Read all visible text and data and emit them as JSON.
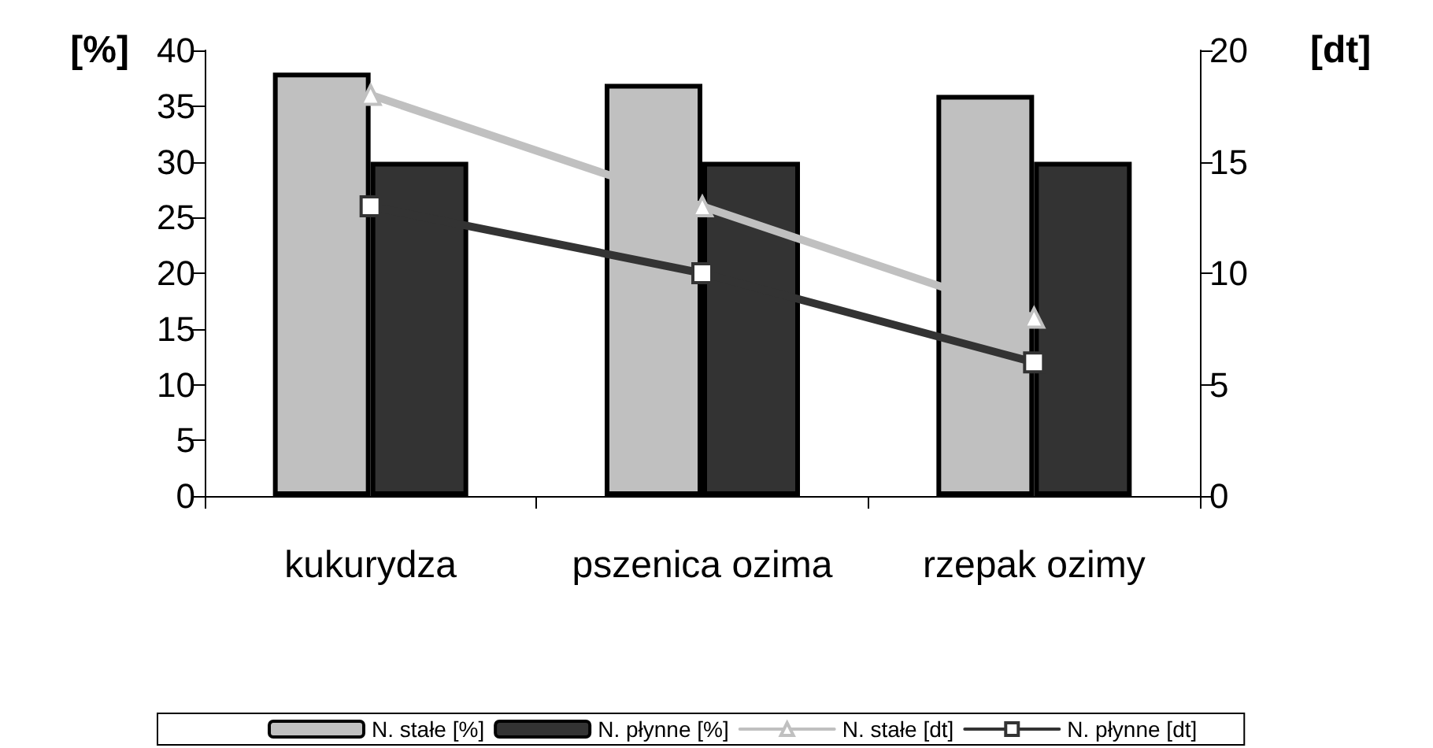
{
  "chart_data": {
    "type": "bar",
    "categories": [
      "kukurydza",
      "pszenica ozima",
      "rzepak ozimy"
    ],
    "series": [
      {
        "name": "N. stałe [%]",
        "color": "#c0c0c0",
        "values": [
          38,
          37,
          36
        ]
      },
      {
        "name": "N. płynne [%]",
        "color": "#333333",
        "values": [
          30,
          30,
          30
        ]
      },
      {
        "name": "N. stałe [dt]",
        "type": "line",
        "axis": "y2",
        "marker": "triangle",
        "color": "#c0c0c0",
        "values": [
          18,
          13,
          8
        ]
      },
      {
        "name": "N. płynne [dt]",
        "type": "line",
        "axis": "y2",
        "marker": "square",
        "color": "#333333",
        "values": [
          13,
          10,
          6
        ]
      }
    ],
    "ylabel": "[%]",
    "y2label": "[dt]",
    "ylim": [
      0,
      40
    ],
    "yticks": [
      0,
      5,
      10,
      15,
      20,
      25,
      30,
      35,
      40
    ],
    "y2lim": [
      0,
      20
    ],
    "y2ticks": [
      0,
      5,
      10,
      15,
      20
    ],
    "grid": false,
    "legend": "bottom"
  }
}
